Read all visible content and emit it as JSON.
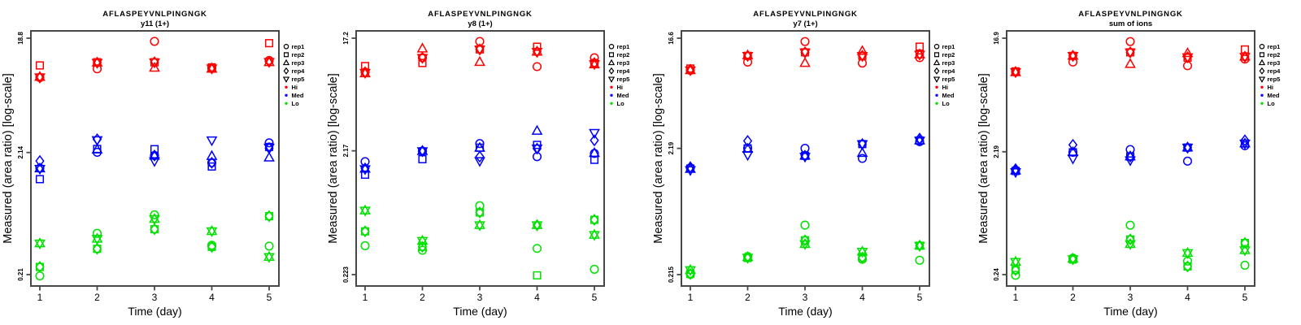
{
  "figure": {
    "title": "AFLASPEYVNLPINGNGK",
    "ylabel": "Measured (area ratio) [log-scale]",
    "xlabel": "Time (day)",
    "x_tick_labels": [
      "1",
      "2",
      "3",
      "4",
      "5"
    ],
    "colors": {
      "hi": "#ff0000",
      "med": "#0000ff",
      "lo": "#00e100",
      "axis": "#474747",
      "text": "#000000"
    },
    "legend": {
      "reps": [
        {
          "label": "rep1",
          "marker": "circle"
        },
        {
          "label": "rep2",
          "marker": "square"
        },
        {
          "label": "rep3",
          "marker": "triangle-up"
        },
        {
          "label": "rep4",
          "marker": "diamond"
        },
        {
          "label": "rep5",
          "marker": "triangle-down"
        }
      ],
      "groups": [
        {
          "label": "Hi",
          "color": "#ff0000"
        },
        {
          "label": "Med",
          "color": "#0000ff"
        },
        {
          "label": "Lo",
          "color": "#00e100"
        }
      ]
    }
  },
  "chart_data": [
    {
      "type": "scatter",
      "title": "AFLASPEYVNLPINGNGK",
      "subtitle": "y11 (1+)",
      "x": [
        1,
        2,
        3,
        4,
        5
      ],
      "xlabel": "Time (day)",
      "ylabel": "Measured (area ratio) [log-scale]",
      "y_scale": "log",
      "y_ticks": [
        {
          "label": "18.8",
          "value": 18.8
        },
        {
          "label": "2.14",
          "value": 2.14
        },
        {
          "label": "0.21",
          "value": 0.21
        }
      ],
      "groups": [
        {
          "name": "Hi",
          "color": "#ff0000",
          "reps": {
            "rep1": [
              8.9,
              10.5,
              17.7,
              10.6,
              12.3
            ],
            "rep2": [
              11.2,
              11.9,
              11.9,
              10.8,
              17.1
            ],
            "rep3": [
              9.0,
              11.8,
              10.7,
              10.5,
              11.9
            ],
            "rep4": [
              8.9,
              11.8,
              11.9,
              10.6,
              12.0
            ],
            "rep5": [
              8.95,
              11.8,
              11.9,
              10.6,
              12.0
            ]
          }
        },
        {
          "name": "Med",
          "color": "#0000ff",
          "reps": {
            "rep1": [
              1.59,
              2.15,
              2.02,
              1.76,
              2.57
            ],
            "rep2": [
              1.29,
              2.29,
              2.28,
              1.64,
              2.38
            ],
            "rep3": [
              1.58,
              2.26,
              2.01,
              2.0,
              1.94
            ],
            "rep4": [
              1.82,
              2.75,
              2.02,
              1.76,
              2.33
            ],
            "rep5": [
              1.57,
              2.71,
              1.82,
              2.7,
              2.35
            ]
          }
        },
        {
          "name": "Lo",
          "color": "#00e100",
          "reps": {
            "rep1": [
              0.205,
              0.46,
              0.654,
              0.367,
              0.361
            ],
            "rep2": [
              0.243,
              0.343,
              0.498,
              0.356,
              0.638
            ],
            "rep3": [
              0.38,
              0.415,
              0.605,
              0.48,
              0.294
            ],
            "rep4": [
              0.243,
              0.343,
              0.498,
              0.356,
              0.638
            ],
            "rep5": [
              0.38,
              0.415,
              0.605,
              0.48,
              0.294
            ]
          }
        }
      ]
    },
    {
      "type": "scatter",
      "title": "AFLASPEYVNLPINGNGK",
      "subtitle": "y8 (1+)",
      "x": [
        1,
        2,
        3,
        4,
        5
      ],
      "xlabel": "Time (day)",
      "ylabel": "Measured (area ratio) [log-scale]",
      "y_scale": "log",
      "y_ticks": [
        {
          "label": "17.2",
          "value": 17.2
        },
        {
          "label": "2.17",
          "value": 2.17
        },
        {
          "label": "0.223",
          "value": 0.223
        }
      ],
      "groups": [
        {
          "name": "Hi",
          "color": "#ff0000",
          "reps": {
            "rep1": [
              9.2,
              12.0,
              16.2,
              10.2,
              12.0
            ],
            "rep2": [
              10.3,
              10.9,
              14.0,
              14.7,
              10.9
            ],
            "rep3": [
              9.0,
              14.2,
              11.1,
              13.4,
              10.6
            ],
            "rep4": [
              9.2,
              12.0,
              14.0,
              13.4,
              10.9
            ],
            "rep5": [
              9.1,
              12.0,
              14.0,
              13.4,
              10.7
            ]
          }
        },
        {
          "name": "Med",
          "color": "#0000ff",
          "reps": {
            "rep1": [
              1.78,
              2.16,
              2.48,
              1.95,
              2.07
            ],
            "rep2": [
              1.4,
              1.86,
              2.3,
              2.42,
              1.84
            ],
            "rep3": [
              1.56,
              2.16,
              2.29,
              3.13,
              2.08
            ],
            "rep4": [
              1.57,
              2.16,
              1.95,
              2.26,
              2.63
            ],
            "rep5": [
              1.55,
              2.16,
              1.8,
              2.27,
              3.02
            ]
          }
        },
        {
          "name": "Lo",
          "color": "#00e100",
          "reps": {
            "rep1": [
              0.379,
              0.349,
              0.791,
              0.361,
              0.246
            ],
            "rep2": [
              0.494,
              0.372,
              0.699,
              0.22,
              0.611
            ],
            "rep3": [
              0.724,
              0.415,
              0.553,
              0.553,
              0.463
            ],
            "rep4": [
              0.494,
              0.372,
              0.699,
              0.553,
              0.611
            ],
            "rep5": [
              0.724,
              0.415,
              0.553,
              0.553,
              0.463
            ]
          }
        }
      ]
    },
    {
      "type": "scatter",
      "title": "AFLASPEYVNLPINGNGK",
      "subtitle": "y7 (1+)",
      "x": [
        1,
        2,
        3,
        4,
        5
      ],
      "xlabel": "Time (day)",
      "ylabel": "Measured (area ratio) [log-scale]",
      "y_scale": "log",
      "y_ticks": [
        {
          "label": "16.6",
          "value": 16.6
        },
        {
          "label": "2.19",
          "value": 2.19
        },
        {
          "label": "0.215",
          "value": 0.215
        }
      ],
      "groups": [
        {
          "name": "Hi",
          "color": "#ff0000",
          "reps": {
            "rep1": [
              9.2,
              10.7,
              15.6,
              10.5,
              11.6
            ],
            "rep2": [
              9.5,
              12.0,
              12.8,
              12.0,
              14.2
            ],
            "rep3": [
              9.2,
              12.1,
              10.5,
              13.1,
              12.3
            ],
            "rep4": [
              9.3,
              12.0,
              12.8,
              12.0,
              12.3
            ],
            "rep5": [
              9.2,
              12.0,
              12.8,
              12.0,
              12.3
            ]
          }
        },
        {
          "name": "Med",
          "color": "#0000ff",
          "reps": {
            "rep1": [
              1.53,
              2.2,
              2.19,
              1.82,
              2.48
            ],
            "rep2": [
              1.51,
              2.19,
              1.91,
              2.37,
              2.53
            ],
            "rep3": [
              1.5,
              2.17,
              1.91,
              2.01,
              2.53
            ],
            "rep4": [
              1.55,
              2.51,
              1.91,
              2.37,
              2.62
            ],
            "rep5": [
              1.47,
              1.94,
              1.88,
              2.37,
              2.53
            ]
          }
        },
        {
          "name": "Lo",
          "color": "#00e100",
          "reps": {
            "rep1": [
              0.216,
              0.3,
              0.534,
              0.285,
              0.28
            ],
            "rep2": [
              0.218,
              0.292,
              0.404,
              0.294,
              0.366
            ],
            "rep3": [
              0.234,
              0.296,
              0.377,
              0.328,
              0.366
            ],
            "rep4": [
              0.218,
              0.294,
              0.404,
              0.294,
              0.366
            ],
            "rep5": [
              0.234,
              0.294,
              0.377,
              0.328,
              0.366
            ]
          }
        }
      ]
    },
    {
      "type": "scatter",
      "title": "AFLASPEYVNLPINGNGK",
      "subtitle": "sum of ions",
      "x": [
        1,
        2,
        3,
        4,
        5
      ],
      "xlabel": "Time (day)",
      "ylabel": "Measured (area ratio) [log-scale]",
      "y_scale": "log",
      "y_ticks": [
        {
          "label": "16.9",
          "value": 16.9
        },
        {
          "label": "2.19",
          "value": 2.19
        },
        {
          "label": "0.24",
          "value": 0.24
        }
      ],
      "groups": [
        {
          "name": "Hi",
          "color": "#ff0000",
          "reps": {
            "rep1": [
              9.2,
              11.0,
              15.9,
              10.3,
              11.6
            ],
            "rep2": [
              9.3,
              12.3,
              13.1,
              11.9,
              13.8
            ],
            "rep3": [
              9.15,
              12.3,
              10.6,
              12.9,
              12.1
            ],
            "rep4": [
              9.2,
              12.3,
              13.1,
              12.0,
              12.1
            ],
            "rep5": [
              9.2,
              12.3,
              13.1,
              12.0,
              12.1
            ]
          }
        },
        {
          "name": "Med",
          "color": "#0000ff",
          "reps": {
            "rep1": [
              1.57,
              2.17,
              2.28,
              1.85,
              2.44
            ],
            "rep2": [
              1.55,
              2.17,
              2.01,
              2.36,
              2.54
            ],
            "rep3": [
              1.56,
              2.17,
              2.01,
              2.36,
              2.54
            ],
            "rep4": [
              1.6,
              2.48,
              2.01,
              2.36,
              2.69
            ],
            "rep5": [
              1.52,
              1.94,
              1.88,
              2.36,
              2.54
            ]
          }
        },
        {
          "name": "Lo",
          "color": "#00e100",
          "reps": {
            "rep1": [
              0.237,
              0.323,
              0.584,
              0.306,
              0.284
            ],
            "rep2": [
              0.261,
              0.315,
              0.452,
              0.278,
              0.424
            ],
            "rep3": [
              0.302,
              0.32,
              0.416,
              0.354,
              0.372
            ],
            "rep4": [
              0.261,
              0.317,
              0.452,
              0.278,
              0.424
            ],
            "rep5": [
              0.302,
              0.317,
              0.416,
              0.354,
              0.372
            ]
          }
        }
      ]
    }
  ]
}
